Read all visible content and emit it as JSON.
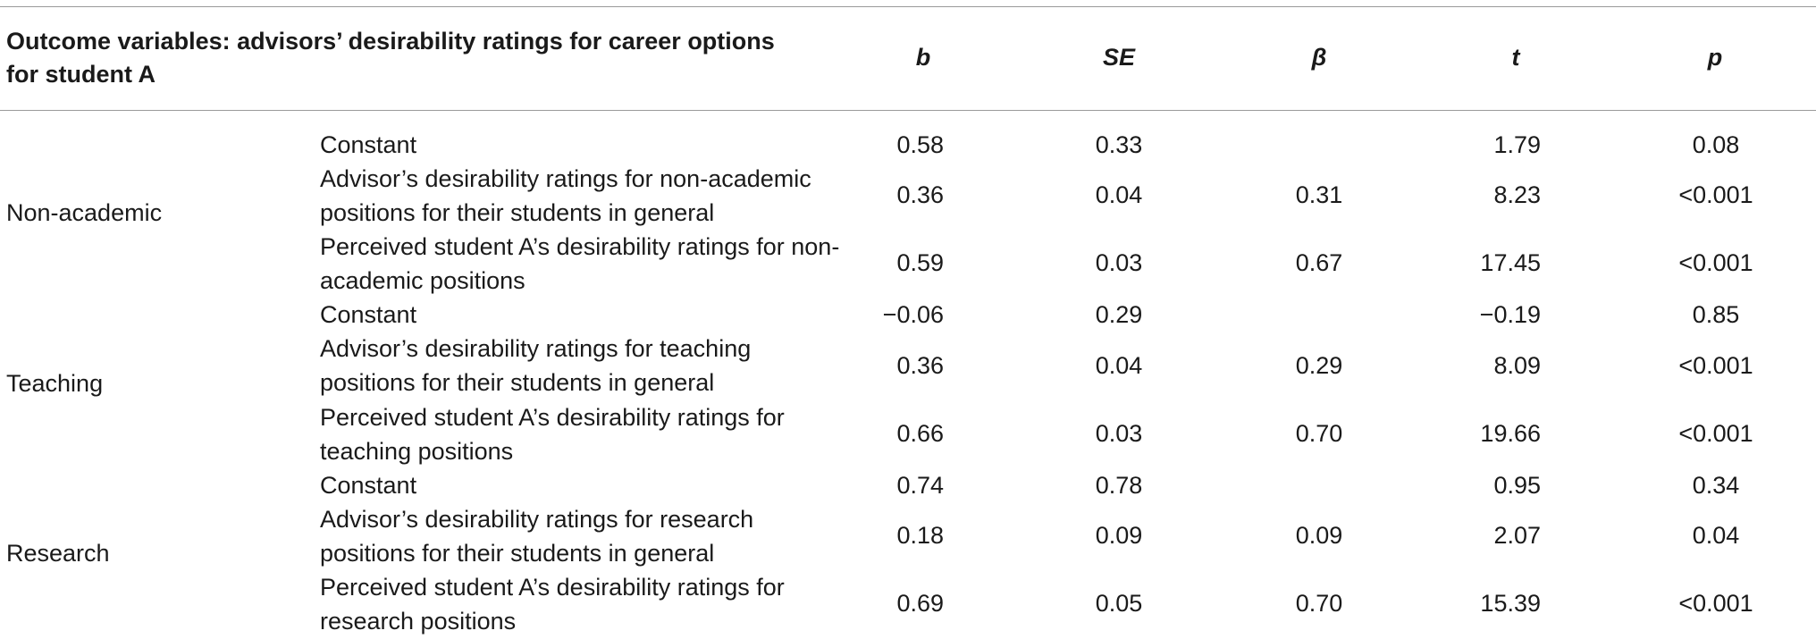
{
  "header": {
    "outcome_label_line1": "Outcome variables: advisors’ desirability ratings for career options",
    "outcome_label_line2": "for student A",
    "col_b": "b",
    "col_se": "SE",
    "col_beta": "β",
    "col_t": "t",
    "col_p": "p"
  },
  "groups": [
    {
      "name": "Non-academic",
      "rows": [
        {
          "predictor": "Constant",
          "b": "0.58",
          "se": "0.33",
          "beta": "",
          "t": "1.79",
          "p": "0.08"
        },
        {
          "predictor": "Advisor’s desirability ratings for non-academic positions for their students in general",
          "b": "0.36",
          "se": "0.04",
          "beta": "0.31",
          "t": "8.23",
          "p": "<0.001"
        },
        {
          "predictor": "Perceived student A’s desirability ratings for non-academic positions",
          "b": "0.59",
          "se": "0.03",
          "beta": "0.67",
          "t": "17.45",
          "p": "<0.001"
        }
      ]
    },
    {
      "name": "Teaching",
      "rows": [
        {
          "predictor": "Constant",
          "b": "−0.06",
          "se": "0.29",
          "beta": "",
          "t": "−0.19",
          "p": "0.85"
        },
        {
          "predictor": "Advisor’s desirability ratings for teaching positions for their students in general",
          "b": "0.36",
          "se": "0.04",
          "beta": "0.29",
          "t": "8.09",
          "p": "<0.001"
        },
        {
          "predictor": "Perceived student A’s desirability ratings for teaching positions",
          "b": "0.66",
          "se": "0.03",
          "beta": "0.70",
          "t": "19.66",
          "p": "<0.001"
        }
      ]
    },
    {
      "name": "Research",
      "rows": [
        {
          "predictor": "Constant",
          "b": "0.74",
          "se": "0.78",
          "beta": "",
          "t": "0.95",
          "p": "0.34"
        },
        {
          "predictor": "Advisor’s desirability ratings for research positions for their students in general",
          "b": "0.18",
          "se": "0.09",
          "beta": "0.09",
          "t": "2.07",
          "p": "0.04"
        },
        {
          "predictor": "Perceived student A’s desirability ratings for research positions",
          "b": "0.69",
          "se": "0.05",
          "beta": "0.70",
          "t": "15.39",
          "p": "<0.001"
        }
      ]
    }
  ]
}
